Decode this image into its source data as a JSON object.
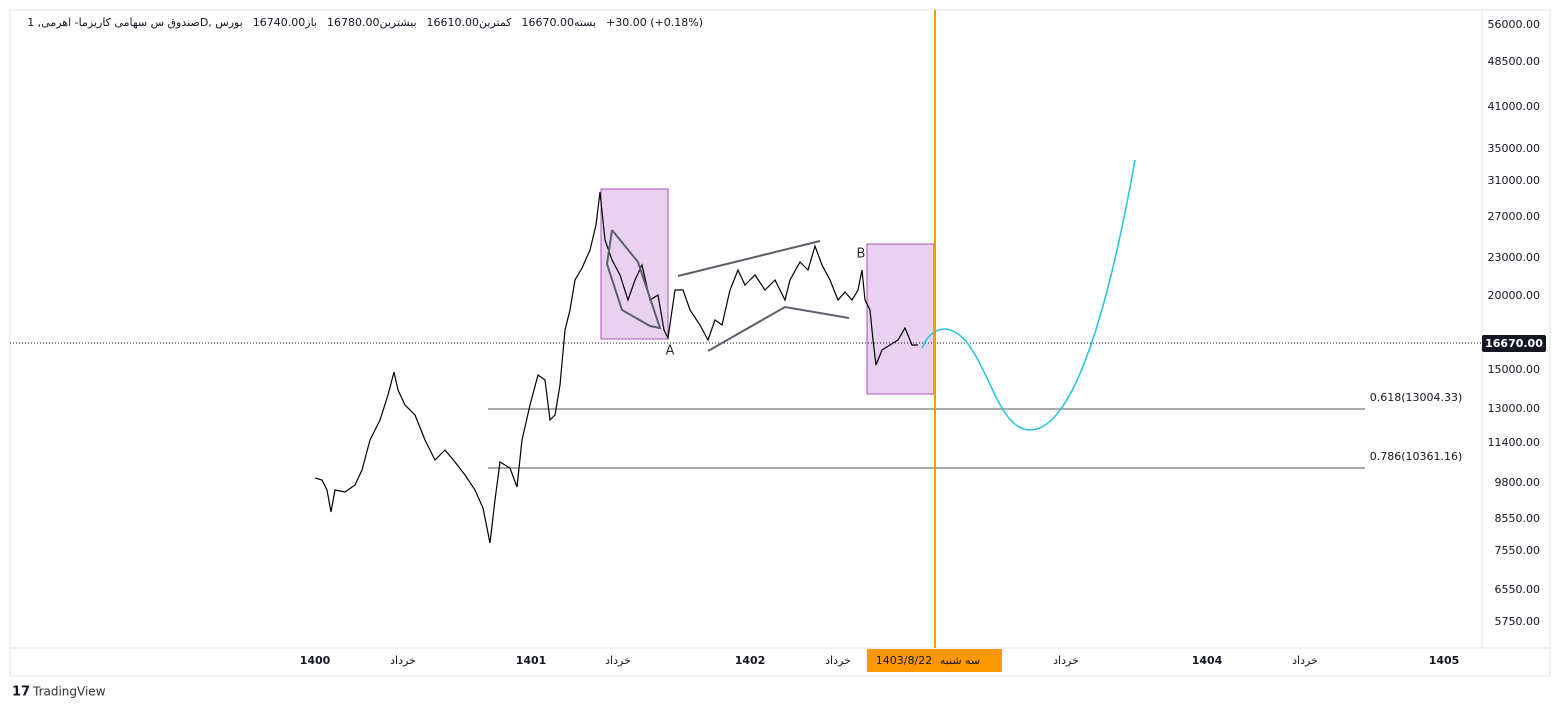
{
  "legend": {
    "symbol": "صندوق س سهامی کاریزما- اهرمی, 1D, بورس",
    "open": "باز16740.00",
    "high": "بیشترین16780.00",
    "low": "کمترین16610.00",
    "close": "بسته16670.00",
    "change": "+30.00 (+0.18%)"
  },
  "price_axis": [
    "56000.00",
    "48500.00",
    "41000.00",
    "35000.00",
    "31000.00",
    "27000.00",
    "23000.00",
    "20000.00",
    "15000.00",
    "13000.00",
    "11400.00",
    "9800.00",
    "8550.00",
    "7550.00",
    "6550.00",
    "5750.00"
  ],
  "last_price": "16670.00",
  "time_axis": [
    "1400",
    "خرداد",
    "1401",
    "خرداد",
    "1402",
    "خرداد",
    "خرداد",
    "1404",
    "خرداد",
    "1405"
  ],
  "cursor_date": "1403/8/22",
  "cursor_day": "سه شنبه",
  "fib_levels": [
    "0.618(13004.33)",
    "0.786(10361.16)"
  ],
  "point_labels": [
    "A",
    "B"
  ],
  "brand": "TradingView"
}
